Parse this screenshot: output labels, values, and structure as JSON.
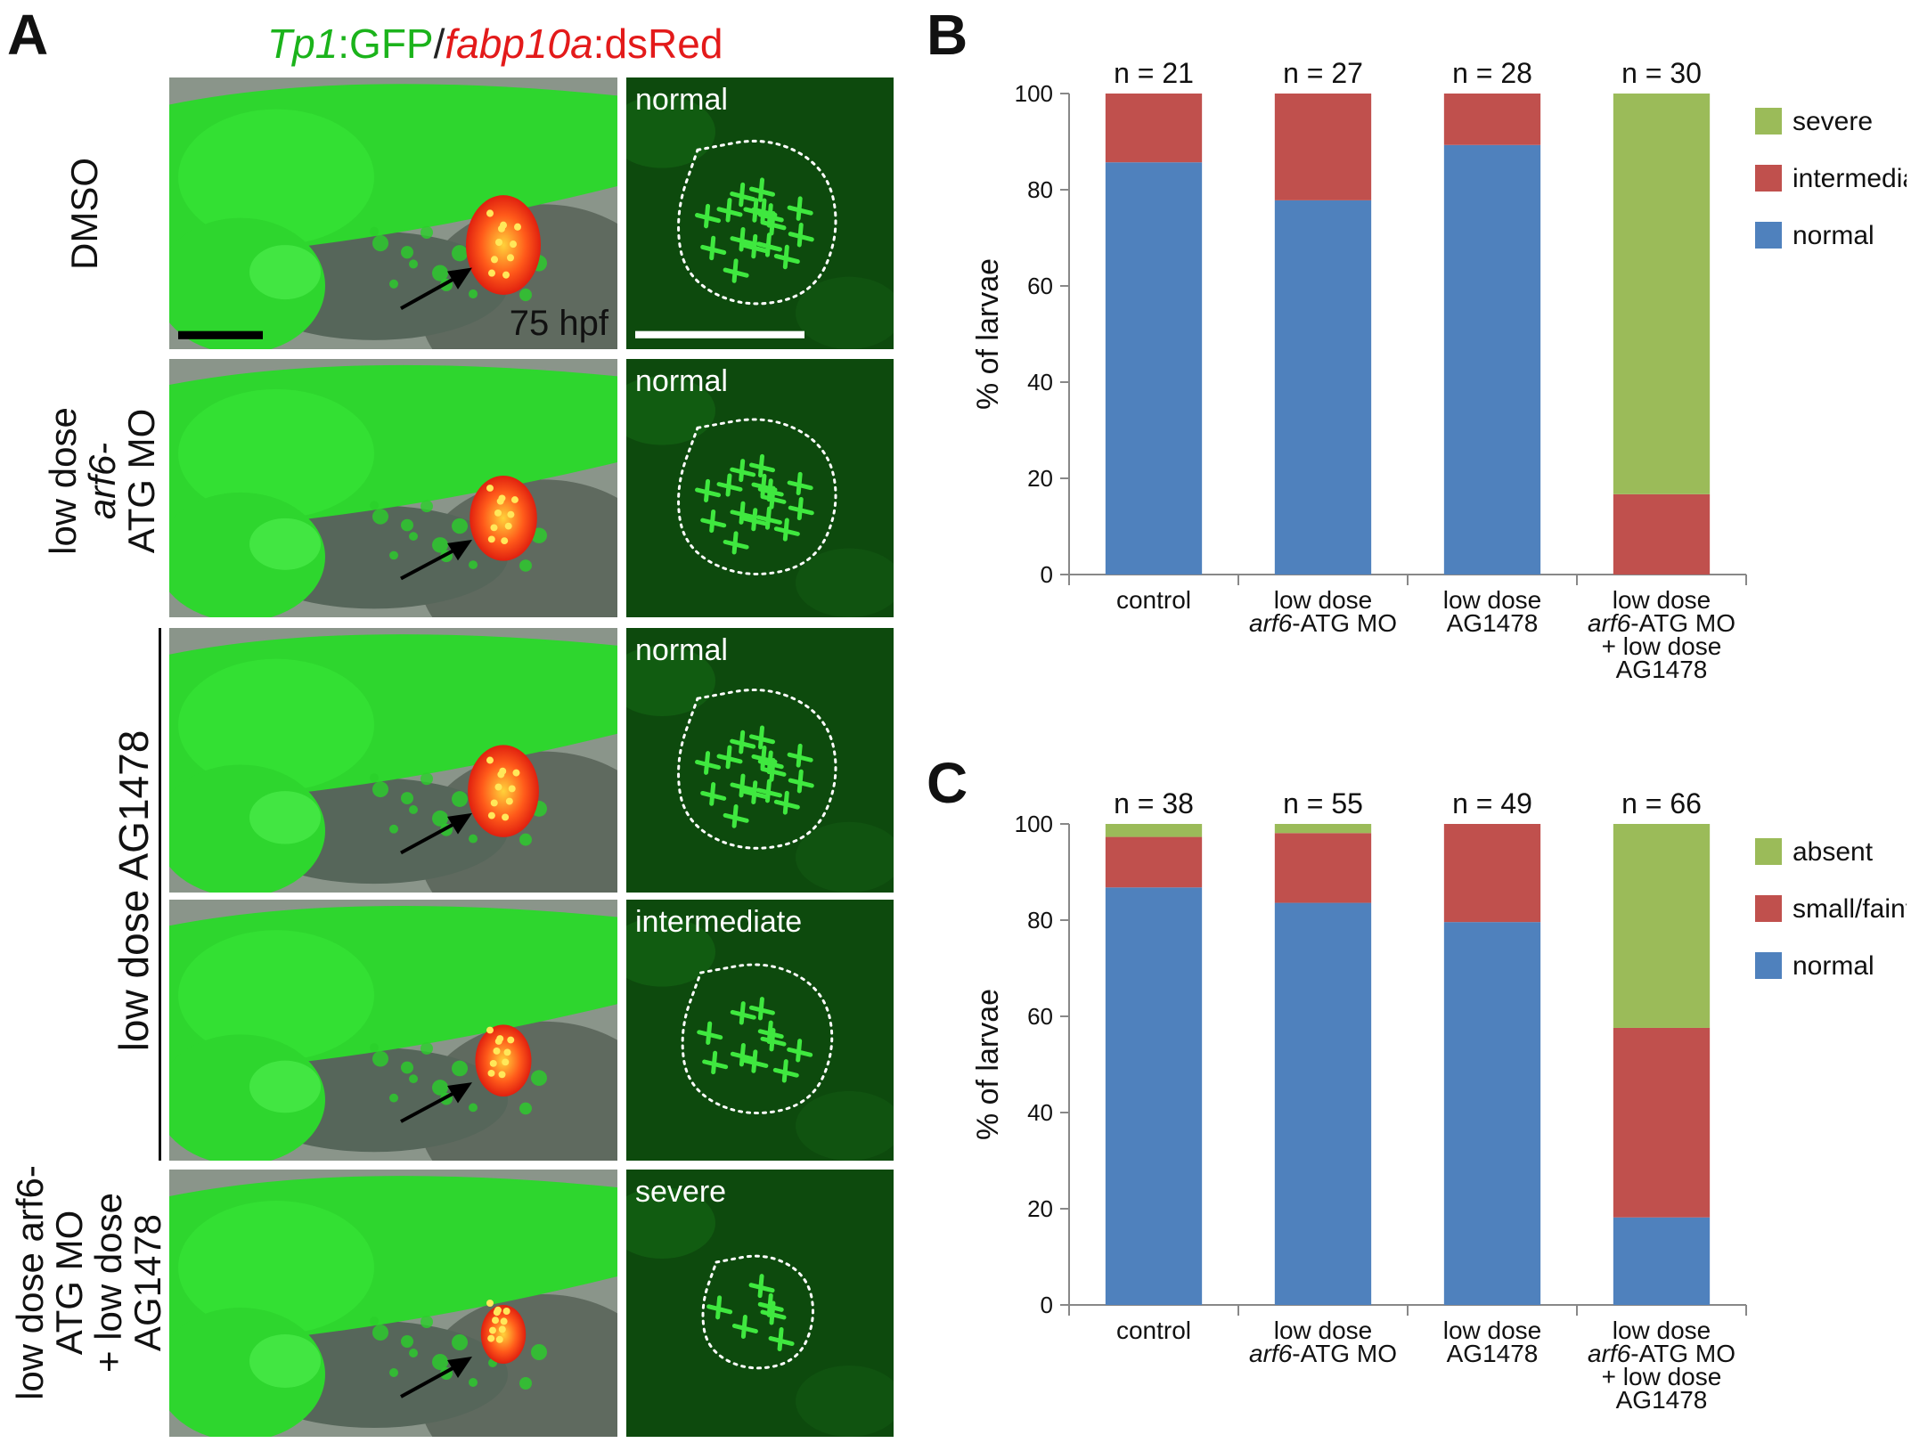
{
  "panel_letters": {
    "a": "A",
    "b": "B",
    "c": "C"
  },
  "figure_title": {
    "part1": "Tp1",
    "part2": ":GFP",
    "sep": "/",
    "part3": "fabp10a",
    "part4": ":dsRed"
  },
  "timepoint": "75 hpf",
  "rows": [
    {
      "label_lines": [
        "DMSO"
      ],
      "zoom_label": "normal"
    },
    {
      "label_lines": [
        "low dose",
        "arf6-",
        "ATG MO"
      ],
      "zoom_label": "normal"
    },
    {
      "label_lines": [],
      "zoom_label": "normal"
    },
    {
      "label_lines": [],
      "zoom_label": "intermediate"
    },
    {
      "label_lines": [
        "low dose arf6-",
        "ATG MO",
        "+ low dose",
        "AG1478"
      ],
      "zoom_label": "severe"
    }
  ],
  "group_label": "low dose AG1478",
  "colors": {
    "normal": "#4f81bd",
    "mid": "#c0504d",
    "severe": "#9bbb59",
    "gfp": "#2bd62b"
  },
  "chart_data": [
    {
      "type": "bar",
      "stacked": true,
      "panel": "B",
      "categories": [
        [
          "control"
        ],
        [
          "low dose",
          "arf6-ATG MO"
        ],
        [
          "low dose",
          "AG1478"
        ],
        [
          "low dose",
          "arf6-ATG MO",
          "+ low dose",
          "AG1478"
        ]
      ],
      "n_labels": [
        "n = 21",
        "n = 27",
        "n = 28",
        "n = 30"
      ],
      "series": [
        {
          "name": "normal",
          "values": [
            85.7,
            77.8,
            89.3,
            0
          ]
        },
        {
          "name": "intermediate",
          "values": [
            14.3,
            22.2,
            10.7,
            16.7
          ]
        },
        {
          "name": "severe",
          "values": [
            0,
            0,
            0,
            83.3
          ]
        }
      ],
      "legend_order": [
        "severe",
        "intermediate",
        "normal"
      ],
      "ylabel": "% of larvae",
      "ylim": [
        0,
        100
      ],
      "yticks": [
        "0",
        "20",
        "40",
        "60",
        "80",
        "100"
      ],
      "grid": false,
      "legend": "right"
    },
    {
      "type": "bar",
      "stacked": true,
      "panel": "C",
      "categories": [
        [
          "control"
        ],
        [
          "low dose",
          "arf6-ATG MO"
        ],
        [
          "low dose",
          "AG1478"
        ],
        [
          "low dose",
          "arf6-ATG MO",
          "+ low dose",
          "AG1478"
        ]
      ],
      "n_labels": [
        "n = 38",
        "n = 55",
        "n = 49",
        "n = 66"
      ],
      "series": [
        {
          "name": "normal",
          "values": [
            86.8,
            83.6,
            79.6,
            18.2
          ]
        },
        {
          "name": "small/faint",
          "values": [
            10.5,
            14.5,
            20.4,
            39.4
          ]
        },
        {
          "name": "absent",
          "values": [
            2.7,
            1.9,
            0,
            42.4
          ]
        }
      ],
      "legend_order": [
        "absent",
        "small/faint",
        "normal"
      ],
      "ylabel": "% of larvae",
      "ylim": [
        0,
        100
      ],
      "yticks": [
        "0",
        "20",
        "40",
        "60",
        "80",
        "100"
      ],
      "grid": false,
      "legend": "right"
    }
  ]
}
